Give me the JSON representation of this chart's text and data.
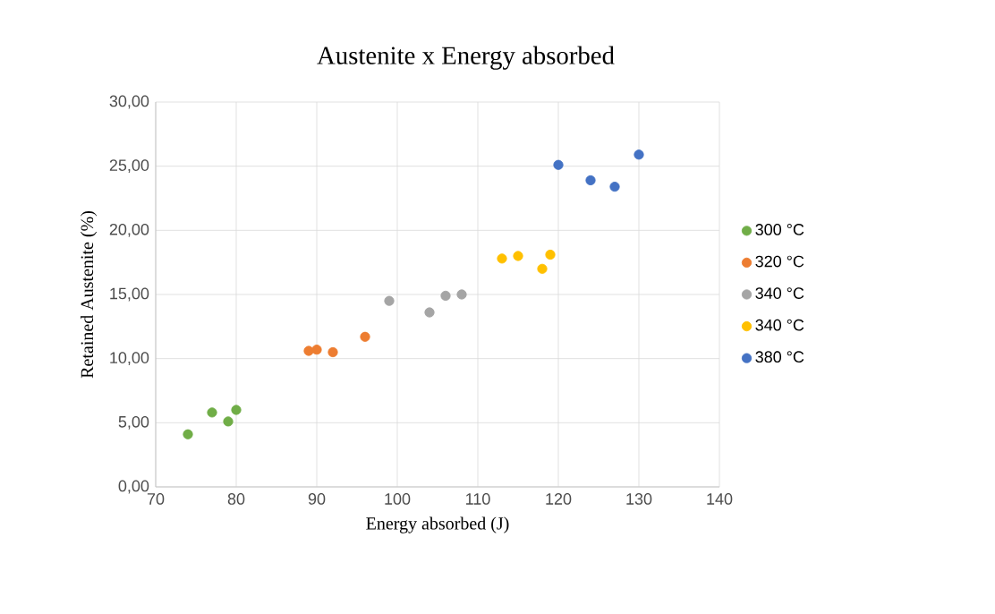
{
  "chart_data": {
    "type": "scatter",
    "title": "Austenite x Energy absorbed",
    "xlabel": "Energy absorbed (J)",
    "ylabel": "Retained Austenite (%)",
    "series": [
      {
        "name": "300 °C",
        "color": "#70ad47",
        "x": [
          74,
          77,
          79,
          80
        ],
        "values": [
          4.1,
          5.8,
          5.1,
          6.0
        ]
      },
      {
        "name": "320 °C",
        "color": "#ed7d31",
        "x": [
          89,
          90,
          92,
          96
        ],
        "values": [
          10.6,
          10.7,
          10.5,
          11.7
        ]
      },
      {
        "name": "340 °C",
        "color": "#a5a5a5",
        "x": [
          99,
          104,
          106,
          108
        ],
        "values": [
          14.5,
          13.6,
          14.9,
          15.0
        ]
      },
      {
        "name": "340 °C",
        "color": "#ffc000",
        "x": [
          113,
          115,
          118,
          119
        ],
        "values": [
          17.8,
          18.0,
          17.0,
          18.1
        ]
      },
      {
        "name": "380 °C",
        "color": "#4472c4",
        "x": [
          120,
          124,
          127,
          130
        ],
        "values": [
          25.1,
          23.9,
          23.4,
          25.9
        ]
      }
    ],
    "xlim": [
      70,
      140
    ],
    "xticks": [
      70,
      80,
      90,
      100,
      110,
      120,
      130,
      140
    ],
    "ylim": [
      0,
      30
    ],
    "yticks": [
      {
        "value": 0,
        "label": "0,00"
      },
      {
        "value": 5,
        "label": "5,00"
      },
      {
        "value": 10,
        "label": "10,00"
      },
      {
        "value": 15,
        "label": "15,00"
      },
      {
        "value": 20,
        "label": "20,00"
      },
      {
        "value": 25,
        "label": "25,00"
      },
      {
        "value": 30,
        "label": "30,00"
      }
    ],
    "grid": true,
    "legend": "right",
    "marker": "circle"
  }
}
